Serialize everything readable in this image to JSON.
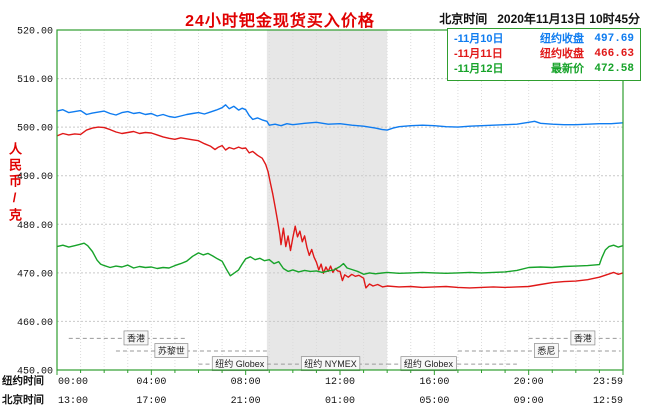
{
  "header": {
    "title": "24小时钯金现货买入价格",
    "timestamp_label": "北京时间",
    "timestamp": "2020年11月13日 10时45分"
  },
  "axes": {
    "y_label": "人民币/克",
    "y_ticks": [
      {
        "v": 520,
        "label": "520.00"
      },
      {
        "v": 510,
        "label": "510.00"
      },
      {
        "v": 500,
        "label": "500.00"
      },
      {
        "v": 490,
        "label": "490.00"
      },
      {
        "v": 480,
        "label": "480.00"
      },
      {
        "v": 470,
        "label": "470.00"
      },
      {
        "v": 460,
        "label": "460.00"
      },
      {
        "v": 450,
        "label": "450.00"
      }
    ],
    "row_labels": {
      "ny": "纽约时间",
      "bj": "北京时间"
    },
    "x_ticks": [
      {
        "hour": 0,
        "ny": "00:00",
        "bj": "13:00"
      },
      {
        "hour": 4,
        "ny": "04:00",
        "bj": "17:00"
      },
      {
        "hour": 8,
        "ny": "08:00",
        "bj": "21:00"
      },
      {
        "hour": 12,
        "ny": "12:00",
        "bj": "01:00"
      },
      {
        "hour": 16,
        "ny": "16:00",
        "bj": "05:00"
      },
      {
        "hour": 20,
        "ny": "20:00",
        "bj": "09:00"
      },
      {
        "hour": 23.983,
        "ny": "23:59",
        "bj": "12:59"
      }
    ]
  },
  "chart_data": {
    "type": "line",
    "title": "24小时钯金现货买入价格",
    "ylabel": "人民币/克",
    "ylim": [
      450,
      520
    ],
    "xlim_hours": [
      0,
      24
    ],
    "grid": true,
    "legend_position": "top-right",
    "shaded_session": {
      "start_hour": 8.9,
      "end_hour": 14.0,
      "color": "#e7e7e7"
    },
    "series": [
      {
        "name": "11月10日",
        "color": "#0f7cf0",
        "legend": {
          "date": "-11月10日",
          "label": "纽约收盘",
          "value": "497.69"
        },
        "points": [
          [
            0,
            503.3
          ],
          [
            0.25,
            503.6
          ],
          [
            0.5,
            503.0
          ],
          [
            0.75,
            503.2
          ],
          [
            1,
            503.4
          ],
          [
            1.25,
            502.6
          ],
          [
            1.5,
            502.9
          ],
          [
            1.75,
            503.1
          ],
          [
            2,
            503.3
          ],
          [
            2.25,
            502.8
          ],
          [
            2.5,
            502.5
          ],
          [
            2.75,
            503.0
          ],
          [
            3,
            503.2
          ],
          [
            3.25,
            502.8
          ],
          [
            3.5,
            503.0
          ],
          [
            3.75,
            502.6
          ],
          [
            4,
            502.8
          ],
          [
            4.25,
            502.3
          ],
          [
            4.5,
            502.6
          ],
          [
            4.75,
            502.2
          ],
          [
            5,
            502.0
          ],
          [
            5.25,
            502.3
          ],
          [
            5.5,
            502.6
          ],
          [
            5.75,
            502.8
          ],
          [
            6,
            503.0
          ],
          [
            6.25,
            502.7
          ],
          [
            6.5,
            503.1
          ],
          [
            6.75,
            503.5
          ],
          [
            7,
            504.0
          ],
          [
            7.15,
            504.6
          ],
          [
            7.3,
            503.8
          ],
          [
            7.5,
            504.3
          ],
          [
            7.7,
            503.5
          ],
          [
            7.85,
            503.9
          ],
          [
            8,
            503.6
          ],
          [
            8.15,
            502.4
          ],
          [
            8.3,
            501.6
          ],
          [
            8.5,
            501.9
          ],
          [
            8.7,
            501.5
          ],
          [
            8.9,
            501.2
          ],
          [
            9,
            500.4
          ],
          [
            9.25,
            500.6
          ],
          [
            9.5,
            500.3
          ],
          [
            9.75,
            500.7
          ],
          [
            10,
            500.5
          ],
          [
            10.5,
            500.8
          ],
          [
            11,
            501.0
          ],
          [
            11.5,
            500.6
          ],
          [
            12,
            500.7
          ],
          [
            12.5,
            500.4
          ],
          [
            13,
            500.2
          ],
          [
            13.5,
            499.8
          ],
          [
            13.8,
            499.5
          ],
          [
            14,
            499.4
          ],
          [
            14.25,
            499.8
          ],
          [
            14.5,
            500.1
          ],
          [
            15,
            500.3
          ],
          [
            15.5,
            500.4
          ],
          [
            16,
            500.3
          ],
          [
            16.5,
            500.1
          ],
          [
            17,
            500.0
          ],
          [
            17.5,
            500.2
          ],
          [
            18,
            500.3
          ],
          [
            18.5,
            500.4
          ],
          [
            19,
            500.5
          ],
          [
            19.5,
            500.6
          ],
          [
            20,
            501.0
          ],
          [
            20.25,
            501.2
          ],
          [
            20.5,
            500.8
          ],
          [
            21,
            500.6
          ],
          [
            21.5,
            500.5
          ],
          [
            22,
            500.5
          ],
          [
            22.5,
            500.6
          ],
          [
            23,
            500.7
          ],
          [
            23.5,
            500.7
          ],
          [
            24,
            500.9
          ]
        ]
      },
      {
        "name": "11月11日",
        "color": "#e01818",
        "legend": {
          "date": "-11月11日",
          "label": "纽约收盘",
          "value": "466.63"
        },
        "points": [
          [
            0,
            498.2
          ],
          [
            0.25,
            498.7
          ],
          [
            0.5,
            498.4
          ],
          [
            0.75,
            498.6
          ],
          [
            1,
            498.5
          ],
          [
            1.25,
            499.4
          ],
          [
            1.5,
            499.8
          ],
          [
            1.75,
            500.0
          ],
          [
            2,
            499.9
          ],
          [
            2.25,
            499.5
          ],
          [
            2.5,
            499.0
          ],
          [
            2.75,
            498.7
          ],
          [
            3,
            498.9
          ],
          [
            3.25,
            499.1
          ],
          [
            3.5,
            498.7
          ],
          [
            3.75,
            498.9
          ],
          [
            4,
            498.8
          ],
          [
            4.25,
            498.4
          ],
          [
            4.5,
            498.0
          ],
          [
            4.75,
            497.7
          ],
          [
            5,
            497.5
          ],
          [
            5.25,
            497.8
          ],
          [
            5.5,
            497.6
          ],
          [
            5.75,
            497.4
          ],
          [
            6,
            497.2
          ],
          [
            6.25,
            496.6
          ],
          [
            6.5,
            496.1
          ],
          [
            6.7,
            495.4
          ],
          [
            6.85,
            495.9
          ],
          [
            7,
            496.2
          ],
          [
            7.15,
            495.3
          ],
          [
            7.3,
            495.8
          ],
          [
            7.5,
            495.5
          ],
          [
            7.7,
            495.9
          ],
          [
            7.85,
            495.6
          ],
          [
            8,
            495.7
          ],
          [
            8.15,
            494.7
          ],
          [
            8.3,
            495.0
          ],
          [
            8.5,
            494.2
          ],
          [
            8.7,
            493.6
          ],
          [
            8.85,
            492.3
          ],
          [
            8.95,
            490.8
          ],
          [
            9.05,
            488.5
          ],
          [
            9.15,
            486.2
          ],
          [
            9.25,
            483.6
          ],
          [
            9.35,
            480.8
          ],
          [
            9.45,
            477.8
          ],
          [
            9.5,
            475.8
          ],
          [
            9.6,
            479.2
          ],
          [
            9.7,
            475.4
          ],
          [
            9.8,
            477.6
          ],
          [
            9.9,
            474.6
          ],
          [
            10,
            477.2
          ],
          [
            10.1,
            479.6
          ],
          [
            10.2,
            477.4
          ],
          [
            10.3,
            478.6
          ],
          [
            10.4,
            476.4
          ],
          [
            10.5,
            477.6
          ],
          [
            10.6,
            475.2
          ],
          [
            10.7,
            473.6
          ],
          [
            10.8,
            474.8
          ],
          [
            10.9,
            473.2
          ],
          [
            11,
            472.2
          ],
          [
            11.1,
            470.6
          ],
          [
            11.2,
            471.8
          ],
          [
            11.3,
            469.9
          ],
          [
            11.4,
            471.2
          ],
          [
            11.5,
            470.3
          ],
          [
            11.6,
            471.4
          ],
          [
            11.7,
            470.1
          ],
          [
            11.8,
            470.9
          ],
          [
            11.9,
            470.4
          ],
          [
            12,
            470.3
          ],
          [
            12.1,
            468.4
          ],
          [
            12.2,
            469.6
          ],
          [
            12.35,
            469.1
          ],
          [
            12.5,
            469.7
          ],
          [
            12.65,
            469.3
          ],
          [
            12.8,
            469.5
          ],
          [
            13,
            468.9
          ],
          [
            13.1,
            466.9
          ],
          [
            13.25,
            467.7
          ],
          [
            13.4,
            467.3
          ],
          [
            13.6,
            467.6
          ],
          [
            13.8,
            467.1
          ],
          [
            14,
            467.3
          ],
          [
            14.5,
            467.1
          ],
          [
            15,
            467.2
          ],
          [
            15.5,
            467.0
          ],
          [
            16,
            467.1
          ],
          [
            16.5,
            467.2
          ],
          [
            17,
            467.0
          ],
          [
            17.5,
            466.9
          ],
          [
            18,
            467.0
          ],
          [
            18.5,
            467.1
          ],
          [
            19,
            467.0
          ],
          [
            19.5,
            467.1
          ],
          [
            20,
            467.2
          ],
          [
            20.5,
            467.6
          ],
          [
            21,
            468.0
          ],
          [
            21.5,
            468.2
          ],
          [
            22,
            468.3
          ],
          [
            22.5,
            468.6
          ],
          [
            23,
            469.1
          ],
          [
            23.3,
            469.6
          ],
          [
            23.6,
            470.1
          ],
          [
            23.8,
            469.7
          ],
          [
            24,
            470.0
          ]
        ]
      },
      {
        "name": "11月12日",
        "color": "#17a32a",
        "legend": {
          "date": "-11月12日",
          "label": "最新价",
          "value": "472.58"
        },
        "points": [
          [
            0,
            475.4
          ],
          [
            0.25,
            475.7
          ],
          [
            0.5,
            475.3
          ],
          [
            0.75,
            475.6
          ],
          [
            1,
            475.9
          ],
          [
            1.15,
            476.1
          ],
          [
            1.3,
            475.6
          ],
          [
            1.5,
            474.4
          ],
          [
            1.7,
            472.6
          ],
          [
            1.85,
            471.8
          ],
          [
            2,
            471.5
          ],
          [
            2.25,
            471.1
          ],
          [
            2.5,
            471.4
          ],
          [
            2.75,
            471.2
          ],
          [
            3,
            471.6
          ],
          [
            3.25,
            471.0
          ],
          [
            3.5,
            471.3
          ],
          [
            3.75,
            471.1
          ],
          [
            4,
            471.2
          ],
          [
            4.25,
            470.9
          ],
          [
            4.5,
            471.1
          ],
          [
            4.75,
            471.0
          ],
          [
            5,
            471.5
          ],
          [
            5.25,
            471.9
          ],
          [
            5.5,
            472.4
          ],
          [
            5.75,
            473.4
          ],
          [
            6,
            474.1
          ],
          [
            6.2,
            473.7
          ],
          [
            6.4,
            474.0
          ],
          [
            6.6,
            473.5
          ],
          [
            6.8,
            472.9
          ],
          [
            7,
            472.4
          ],
          [
            7.2,
            470.6
          ],
          [
            7.35,
            469.4
          ],
          [
            7.5,
            469.9
          ],
          [
            7.7,
            470.6
          ],
          [
            7.85,
            471.8
          ],
          [
            8,
            472.9
          ],
          [
            8.2,
            473.3
          ],
          [
            8.4,
            472.7
          ],
          [
            8.6,
            473.0
          ],
          [
            8.8,
            472.5
          ],
          [
            9,
            472.7
          ],
          [
            9.2,
            471.9
          ],
          [
            9.4,
            472.3
          ],
          [
            9.6,
            470.9
          ],
          [
            9.8,
            470.3
          ],
          [
            10,
            470.6
          ],
          [
            10.25,
            470.2
          ],
          [
            10.5,
            470.5
          ],
          [
            10.75,
            470.3
          ],
          [
            11,
            470.4
          ],
          [
            11.25,
            470.1
          ],
          [
            11.5,
            470.4
          ],
          [
            11.75,
            470.6
          ],
          [
            12,
            471.3
          ],
          [
            12.15,
            471.9
          ],
          [
            12.3,
            471.0
          ],
          [
            12.5,
            470.7
          ],
          [
            12.75,
            470.3
          ],
          [
            13,
            469.7
          ],
          [
            13.25,
            470.0
          ],
          [
            13.5,
            469.8
          ],
          [
            14,
            470.1
          ],
          [
            14.5,
            469.9
          ],
          [
            15,
            470.0
          ],
          [
            15.5,
            470.1
          ],
          [
            16,
            470.0
          ],
          [
            16.5,
            469.9
          ],
          [
            17,
            470.0
          ],
          [
            17.5,
            470.1
          ],
          [
            18,
            470.0
          ],
          [
            18.5,
            470.1
          ],
          [
            19,
            470.2
          ],
          [
            19.5,
            470.5
          ],
          [
            20,
            471.1
          ],
          [
            20.5,
            471.2
          ],
          [
            21,
            471.1
          ],
          [
            21.5,
            471.3
          ],
          [
            22,
            471.4
          ],
          [
            22.5,
            471.5
          ],
          [
            23,
            471.7
          ],
          [
            23.1,
            473.1
          ],
          [
            23.25,
            474.7
          ],
          [
            23.4,
            475.4
          ],
          [
            23.6,
            475.7
          ],
          [
            23.8,
            475.3
          ],
          [
            24,
            475.6
          ]
        ]
      }
    ],
    "sessions": [
      {
        "label": "香港",
        "line_start": 0.5,
        "line_end": 5.5,
        "label_hour": 3.35,
        "level": 456.5
      },
      {
        "label": "苏黎世",
        "line_start": 2.5,
        "line_end": 8.9,
        "label_hour": 4.85,
        "level": 453.9
      },
      {
        "label": "纽约 Globex",
        "line_start": 6.0,
        "line_end": 8.9,
        "label_hour": 7.75,
        "level": 451.2
      },
      {
        "label": "纽约 NYMEX",
        "line_start": 8.9,
        "line_end": 14.0,
        "label_hour": 11.6,
        "level": 451.2
      },
      {
        "label": "纽约 Globex",
        "line_start": 14.0,
        "line_end": 19.5,
        "label_hour": 15.75,
        "level": 451.2
      },
      {
        "label": "悉尼",
        "line_start": 17.0,
        "line_end": 23.9,
        "label_hour": 20.75,
        "level": 453.9
      },
      {
        "label": "香港",
        "line_start": 20.0,
        "line_end": 23.9,
        "label_hour": 22.3,
        "level": 456.5
      }
    ],
    "frame_color": "#2f9e2f",
    "grid_color": "#c9c9c9"
  }
}
